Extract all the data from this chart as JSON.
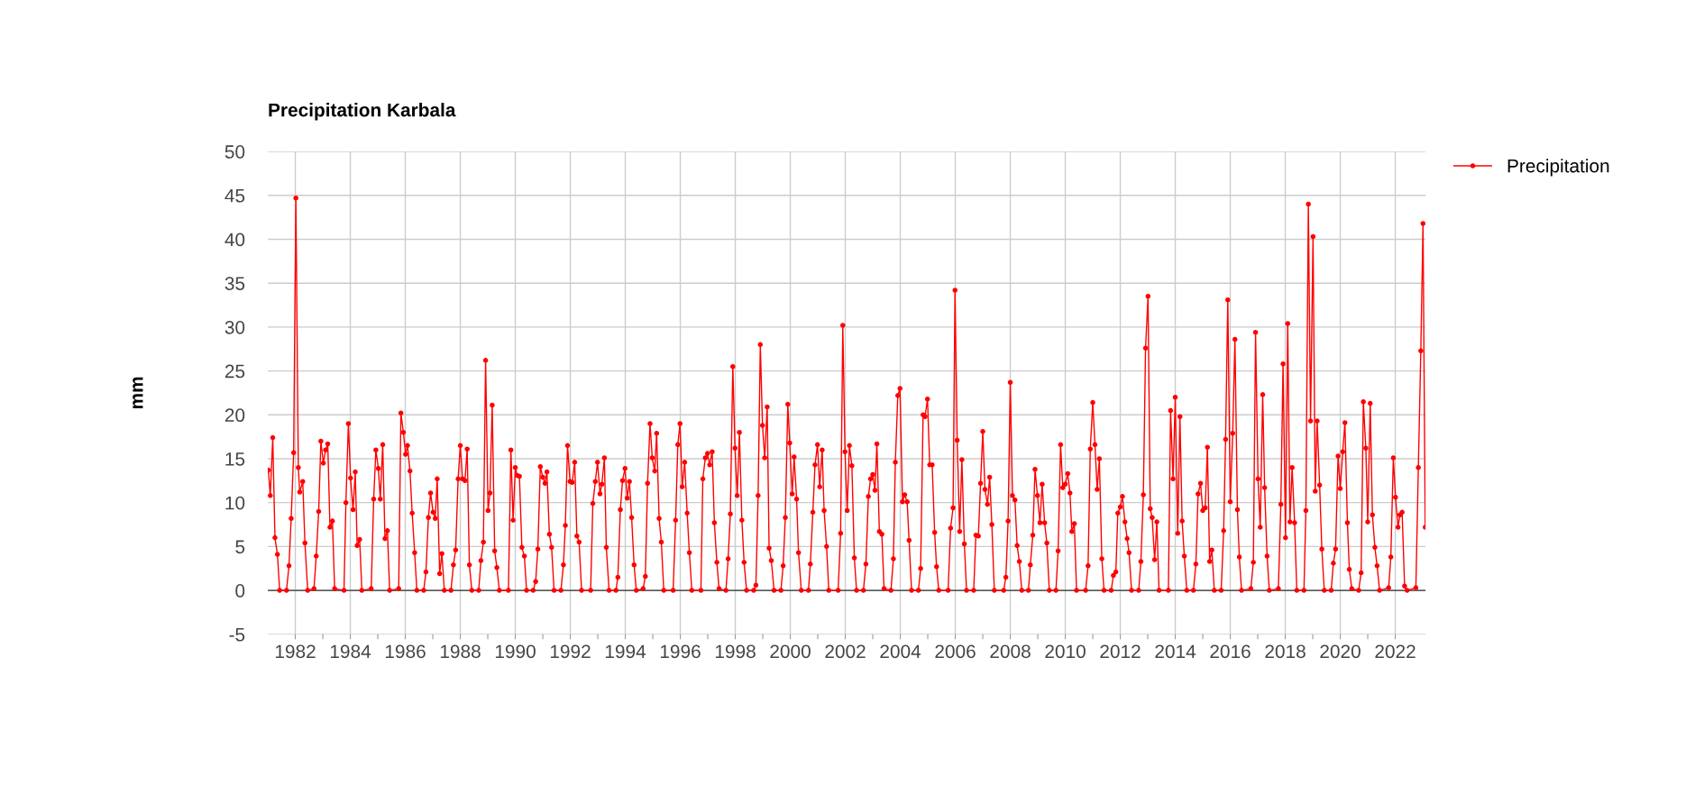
{
  "chart_data": {
    "type": "line",
    "title": "Precipitation Karbala",
    "ylabel": "mm",
    "x": [
      1981.02,
      1981.09,
      1981.18,
      1981.26,
      1981.35,
      1981.43,
      1981.68,
      1981.77,
      1981.85,
      1981.94,
      1982.02,
      1982.11,
      1982.16,
      1982.27,
      1982.35,
      1982.45,
      1982.68,
      1982.76,
      1982.85,
      1982.93,
      1983.02,
      1983.1,
      1983.18,
      1983.26,
      1983.35,
      1983.43,
      1983.77,
      1983.84,
      1983.93,
      1984.01,
      1984.1,
      1984.18,
      1984.25,
      1984.34,
      1984.42,
      1984.76,
      1984.85,
      1984.93,
      1985.02,
      1985.09,
      1985.18,
      1985.26,
      1985.35,
      1985.43,
      1985.76,
      1985.84,
      1985.93,
      1986.01,
      1986.08,
      1986.17,
      1986.25,
      1986.34,
      1986.42,
      1986.67,
      1986.75,
      1986.84,
      1986.92,
      1987.01,
      1987.09,
      1987.16,
      1987.25,
      1987.33,
      1987.42,
      1987.66,
      1987.75,
      1987.83,
      1987.92,
      1988.0,
      1988.08,
      1988.17,
      1988.25,
      1988.33,
      1988.42,
      1988.67,
      1988.75,
      1988.84,
      1988.92,
      1989.01,
      1989.08,
      1989.16,
      1989.25,
      1989.33,
      1989.42,
      1989.75,
      1989.84,
      1989.92,
      1990.0,
      1990.07,
      1990.15,
      1990.24,
      1990.33,
      1990.41,
      1990.65,
      1990.74,
      1990.82,
      1990.91,
      1991.0,
      1991.08,
      1991.15,
      1991.24,
      1991.32,
      1991.41,
      1991.66,
      1991.75,
      1991.82,
      1991.9,
      1991.99,
      1992.07,
      1992.16,
      1992.24,
      1992.32,
      1992.41,
      1992.74,
      1992.82,
      1992.91,
      1992.99,
      1993.08,
      1993.15,
      1993.24,
      1993.31,
      1993.41,
      1993.66,
      1993.73,
      1993.82,
      1993.9,
      1993.99,
      1994.07,
      1994.15,
      1994.23,
      1994.32,
      1994.4,
      1994.65,
      1994.73,
      1994.81,
      1994.9,
      1994.98,
      1995.07,
      1995.14,
      1995.23,
      1995.31,
      1995.4,
      1995.74,
      1995.83,
      1995.91,
      1995.99,
      1996.07,
      1996.16,
      1996.25,
      1996.33,
      1996.42,
      1996.75,
      1996.82,
      1996.91,
      1996.99,
      1997.07,
      1997.16,
      1997.24,
      1997.33,
      1997.41,
      1997.66,
      1997.74,
      1997.82,
      1997.91,
      1997.99,
      1998.07,
      1998.15,
      1998.24,
      1998.32,
      1998.41,
      1998.67,
      1998.75,
      1998.83,
      1998.91,
      1998.99,
      1999.07,
      1999.16,
      1999.23,
      1999.31,
      1999.41,
      1999.66,
      1999.74,
      1999.82,
      1999.91,
      1999.98,
      2000.07,
      2000.14,
      2000.23,
      2000.3,
      2000.4,
      2000.66,
      2000.73,
      2000.82,
      2000.9,
      2000.99,
      2001.07,
      2001.16,
      2001.23,
      2001.32,
      2001.4,
      2001.74,
      2001.83,
      2001.91,
      2001.99,
      2002.07,
      2002.15,
      2002.24,
      2002.33,
      2002.41,
      2002.66,
      2002.75,
      2002.84,
      2002.92,
      2003.0,
      2003.08,
      2003.15,
      2003.24,
      2003.33,
      2003.41,
      2003.66,
      2003.75,
      2003.82,
      2003.91,
      2003.99,
      2004.08,
      2004.16,
      2004.25,
      2004.32,
      2004.41,
      2004.66,
      2004.74,
      2004.83,
      2004.9,
      2004.99,
      2005.07,
      2005.16,
      2005.25,
      2005.32,
      2005.4,
      2005.74,
      2005.83,
      2005.92,
      2005.99,
      2006.07,
      2006.16,
      2006.24,
      2006.33,
      2006.41,
      2006.67,
      2006.75,
      2006.84,
      2006.92,
      2007.0,
      2007.08,
      2007.17,
      2007.25,
      2007.33,
      2007.42,
      2007.76,
      2007.84,
      2007.92,
      2008.0,
      2008.08,
      2008.17,
      2008.25,
      2008.33,
      2008.42,
      2008.66,
      2008.73,
      2008.82,
      2008.9,
      2008.99,
      2009.08,
      2009.16,
      2009.25,
      2009.33,
      2009.42,
      2009.66,
      2009.74,
      2009.83,
      2009.91,
      2010.0,
      2010.09,
      2010.17,
      2010.24,
      2010.33,
      2010.41,
      2010.74,
      2010.83,
      2010.91,
      2011.0,
      2011.08,
      2011.16,
      2011.24,
      2011.33,
      2011.41,
      2011.67,
      2011.75,
      2011.84,
      2011.91,
      2012.0,
      2012.08,
      2012.17,
      2012.25,
      2012.32,
      2012.41,
      2012.67,
      2012.75,
      2012.84,
      2012.92,
      2013.01,
      2013.09,
      2013.16,
      2013.25,
      2013.33,
      2013.41,
      2013.75,
      2013.83,
      2013.92,
      2014.0,
      2014.09,
      2014.17,
      2014.25,
      2014.33,
      2014.42,
      2014.66,
      2014.75,
      2014.83,
      2014.92,
      2015.0,
      2015.09,
      2015.17,
      2015.25,
      2015.33,
      2015.42,
      2015.67,
      2015.76,
      2015.83,
      2015.91,
      2016.0,
      2016.09,
      2016.17,
      2016.26,
      2016.33,
      2016.41,
      2016.75,
      2016.84,
      2016.92,
      2017.01,
      2017.09,
      2017.18,
      2017.25,
      2017.34,
      2017.42,
      2017.75,
      2017.84,
      2017.92,
      2018.01,
      2018.09,
      2018.17,
      2018.25,
      2018.34,
      2018.42,
      2018.68,
      2018.75,
      2018.84,
      2018.92,
      2019.01,
      2019.09,
      2019.16,
      2019.25,
      2019.33,
      2019.42,
      2019.67,
      2019.75,
      2019.83,
      2019.92,
      2020.0,
      2020.09,
      2020.17,
      2020.26,
      2020.33,
      2020.42,
      2020.67,
      2020.76,
      2020.84,
      2020.93,
      2021.0,
      2021.09,
      2021.17,
      2021.26,
      2021.34,
      2021.43,
      2021.76,
      2021.84,
      2021.93,
      2022.01,
      2022.1,
      2022.17,
      2022.25,
      2022.34,
      2022.43,
      2022.75,
      2022.84,
      2022.93,
      2023.01,
      2023.09
    ],
    "series": [
      {
        "name": "Precipitation",
        "color": "#ff0000",
        "values": [
          13.7,
          10.8,
          17.4,
          6.0,
          4.1,
          0,
          0,
          2.8,
          8.2,
          15.7,
          44.7,
          14.0,
          11.2,
          12.4,
          5.4,
          0,
          0.2,
          3.9,
          9.0,
          17.0,
          14.5,
          16.0,
          16.7,
          7.2,
          7.9,
          0.2,
          0,
          10.0,
          19.0,
          12.8,
          9.2,
          13.5,
          5.1,
          5.8,
          0,
          0.2,
          10.4,
          16.0,
          13.9,
          10.4,
          16.6,
          5.9,
          6.8,
          0,
          0.2,
          20.2,
          18.0,
          15.5,
          16.5,
          13.6,
          8.8,
          4.3,
          0,
          0,
          2.1,
          8.3,
          11.1,
          8.9,
          8.2,
          12.7,
          1.9,
          4.2,
          0,
          0,
          2.9,
          4.6,
          12.7,
          16.5,
          12.7,
          12.5,
          16.1,
          2.9,
          0,
          0,
          3.4,
          5.5,
          26.2,
          9.1,
          11.1,
          21.1,
          4.5,
          2.6,
          0,
          0,
          16.0,
          8.0,
          14.0,
          13.1,
          13.0,
          4.9,
          3.9,
          0,
          0,
          1.0,
          4.7,
          14.1,
          12.9,
          12.2,
          13.5,
          6.4,
          4.9,
          0,
          0,
          2.9,
          7.4,
          16.5,
          12.4,
          12.3,
          14.6,
          6.2,
          5.5,
          0,
          0,
          9.9,
          12.4,
          14.6,
          11.0,
          12.1,
          15.1,
          4.9,
          0,
          0,
          1.5,
          9.2,
          12.5,
          13.9,
          10.5,
          12.4,
          8.3,
          2.9,
          0,
          0.2,
          1.6,
          12.2,
          19.0,
          15.1,
          13.6,
          17.9,
          8.2,
          5.5,
          0,
          0,
          8.0,
          16.6,
          19.0,
          11.8,
          14.6,
          8.8,
          4.3,
          0,
          0,
          12.7,
          15.1,
          15.6,
          14.3,
          15.8,
          7.7,
          3.2,
          0.2,
          0,
          3.6,
          8.7,
          25.5,
          16.2,
          10.8,
          18.0,
          8.0,
          3.2,
          0,
          0,
          0.6,
          10.8,
          28.0,
          18.8,
          15.1,
          20.9,
          4.8,
          3.4,
          0,
          0,
          2.8,
          8.3,
          21.2,
          16.8,
          11.0,
          15.2,
          10.4,
          4.3,
          0,
          0,
          3.0,
          8.9,
          14.3,
          16.6,
          11.8,
          16.0,
          9.1,
          5.0,
          0,
          0,
          6.5,
          30.2,
          15.8,
          9.1,
          16.5,
          14.2,
          3.7,
          0,
          0,
          3.0,
          10.7,
          12.7,
          13.2,
          11.4,
          16.7,
          6.7,
          6.4,
          0.2,
          0,
          3.6,
          14.6,
          22.2,
          23.0,
          10.1,
          10.9,
          10.1,
          5.7,
          0,
          0,
          2.5,
          20.0,
          19.8,
          21.8,
          14.3,
          14.3,
          6.6,
          2.7,
          0,
          0,
          7.1,
          9.4,
          34.2,
          17.1,
          6.7,
          14.9,
          5.3,
          0,
          0,
          6.3,
          6.2,
          12.2,
          18.1,
          11.5,
          9.8,
          12.9,
          7.5,
          0,
          0,
          1.5,
          7.9,
          23.7,
          10.8,
          10.3,
          5.1,
          3.3,
          0,
          0,
          2.9,
          6.3,
          13.8,
          10.8,
          7.7,
          12.1,
          7.7,
          5.4,
          0,
          0,
          4.5,
          16.6,
          11.7,
          12.1,
          13.3,
          11.1,
          6.7,
          7.6,
          0,
          0,
          2.8,
          16.1,
          21.4,
          16.6,
          11.5,
          15.0,
          3.6,
          0,
          0,
          1.7,
          2.1,
          8.8,
          9.5,
          10.7,
          7.8,
          5.9,
          4.3,
          0,
          0,
          3.3,
          10.9,
          27.6,
          33.5,
          9.3,
          8.3,
          3.5,
          7.8,
          0,
          0,
          20.5,
          12.7,
          22.0,
          6.5,
          19.8,
          7.9,
          3.9,
          0,
          0,
          3.0,
          11.0,
          12.2,
          9.1,
          9.4,
          16.3,
          3.3,
          4.6,
          0,
          0,
          6.8,
          17.2,
          33.1,
          10.1,
          17.9,
          28.6,
          9.2,
          3.8,
          0,
          0.2,
          3.2,
          29.4,
          12.7,
          7.2,
          22.3,
          11.7,
          3.9,
          0,
          0.2,
          9.8,
          25.8,
          6.0,
          30.4,
          7.8,
          14.0,
          7.7,
          0,
          0,
          9.1,
          44.0,
          19.3,
          40.3,
          11.3,
          19.3,
          12.0,
          4.7,
          0,
          0,
          3.1,
          4.7,
          15.3,
          11.6,
          15.8,
          19.1,
          7.7,
          2.4,
          0.2,
          0,
          2.0,
          21.5,
          16.2,
          7.8,
          21.3,
          8.6,
          4.9,
          2.8,
          0,
          0.3,
          3.8,
          15.1,
          10.6,
          7.2,
          8.6,
          8.9,
          0.5,
          0,
          0.3,
          14.0,
          27.3,
          41.8,
          7.2
        ]
      }
    ],
    "xlim": [
      1981.0,
      2023.1
    ],
    "xticks": [
      1982,
      {
        "value": 1983,
        "label": null
      },
      1984,
      {
        "value": 1985,
        "label": null
      },
      1986,
      {
        "value": 1987,
        "label": null
      },
      1988,
      {
        "value": 1989,
        "label": null
      },
      1990,
      {
        "value": 1991,
        "label": null
      },
      1992,
      {
        "value": 1993,
        "label": null
      },
      1994,
      {
        "value": 1995,
        "label": null
      },
      1996,
      {
        "value": 1997,
        "label": null
      },
      1998,
      {
        "value": 1999,
        "label": null
      },
      2000,
      {
        "value": 2001,
        "label": null
      },
      2002,
      {
        "value": 2003,
        "label": null
      },
      2004,
      {
        "value": 2005,
        "label": null
      },
      2006,
      {
        "value": 2007,
        "label": null
      },
      2008,
      {
        "value": 2009,
        "label": null
      },
      2010,
      {
        "value": 2011,
        "label": null
      },
      2012,
      {
        "value": 2013,
        "label": null
      },
      2014,
      {
        "value": 2015,
        "label": null
      },
      2016,
      {
        "value": 2017,
        "label": null
      },
      2018,
      {
        "value": 2019,
        "label": null
      },
      2020,
      {
        "value": 2021,
        "label": null
      },
      2022
    ],
    "ylim": [
      -5,
      50
    ],
    "yticks": [
      -5,
      0,
      5,
      10,
      15,
      20,
      25,
      30,
      35,
      40,
      45,
      50
    ],
    "ref_lines": [
      {
        "axis": "y",
        "value": 0,
        "color": "#333333"
      }
    ],
    "grid": true,
    "legend": "top right",
    "marker": "circle",
    "line_style": "solid"
  }
}
